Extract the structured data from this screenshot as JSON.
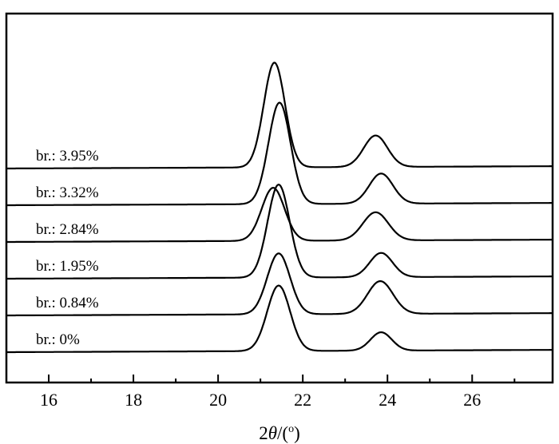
{
  "chart_data": {
    "type": "line",
    "title": "",
    "xlabel": {
      "prefix": "2",
      "symbol": "θ",
      "suffix": "/(",
      "superscript": "o",
      "close": ")"
    },
    "ylabel": "",
    "xlim": [
      15,
      27.9
    ],
    "xticks": [
      16,
      18,
      20,
      22,
      24,
      26
    ],
    "xtick_labels": [
      "16",
      "18",
      "20",
      "22",
      "24",
      "26"
    ],
    "minor_xticks": [
      17,
      19,
      21,
      23,
      25,
      27
    ],
    "grid": false,
    "stacked_offset": true,
    "series": [
      {
        "name": "br.: 0%",
        "label": "br.: 0%",
        "offset": 0,
        "peaks": [
          {
            "x": 21.43,
            "h": 1.0,
            "w": 0.27
          },
          {
            "x": 23.85,
            "h": 0.28,
            "w": 0.25
          }
        ]
      },
      {
        "name": "br.: 0.84%",
        "label": "br.: 0.84%",
        "offset": 1,
        "peaks": [
          {
            "x": 21.43,
            "h": 0.93,
            "w": 0.27
          },
          {
            "x": 23.83,
            "h": 0.5,
            "w": 0.3
          }
        ]
      },
      {
        "name": "br.: 1.95%",
        "label": "br.: 1.95%",
        "offset": 2,
        "peaks": [
          {
            "x": 21.43,
            "h": 1.42,
            "w": 0.26
          },
          {
            "x": 23.85,
            "h": 0.37,
            "w": 0.27
          }
        ]
      },
      {
        "name": "br.: 2.84%",
        "label": "br.: 2.84%",
        "offset": 3,
        "peaks": [
          {
            "x": 21.3,
            "h": 0.81,
            "w": 0.27
          },
          {
            "x": 23.72,
            "h": 0.43,
            "w": 0.3
          }
        ]
      },
      {
        "name": "br.: 3.32%",
        "label": "br.: 3.32%",
        "offset": 4,
        "peaks": [
          {
            "x": 21.45,
            "h": 1.55,
            "w": 0.26
          },
          {
            "x": 23.85,
            "h": 0.46,
            "w": 0.28
          }
        ]
      },
      {
        "name": "br.: 3.95%",
        "label": "br.: 3.95%",
        "offset": 5,
        "peaks": [
          {
            "x": 21.33,
            "h": 1.6,
            "w": 0.25
          },
          {
            "x": 23.72,
            "h": 0.48,
            "w": 0.28
          }
        ]
      }
    ]
  }
}
